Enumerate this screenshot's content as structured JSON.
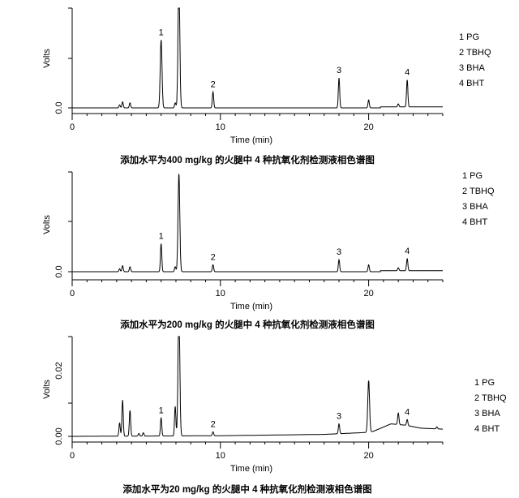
{
  "chart_data": [
    {
      "type": "line",
      "title": "添加水平为400 mg/kg 的火腿中 4 种抗氧化剂检测液相色谱图",
      "xlabel": "Time (min)",
      "ylabel": "Volts",
      "xlim": [
        0,
        25
      ],
      "ylim": [
        0,
        1
      ],
      "x_ticks": [
        "0",
        "10",
        "20"
      ],
      "y_ticks": [
        "0.0"
      ],
      "legend": [
        "1 PG",
        "2 TBHQ",
        "3 BHA",
        "4 BHT"
      ],
      "legend_placement": "right",
      "baseline": [
        [
          0,
          0
        ],
        [
          20.8,
          0
        ],
        [
          20.8,
          0.01
        ],
        [
          25,
          0.01
        ]
      ],
      "peaks": [
        {
          "t": 3.2,
          "h": 0.03
        },
        {
          "t": 3.4,
          "h": 0.06
        },
        {
          "t": 3.9,
          "h": 0.05
        },
        {
          "t": 6.0,
          "h": 0.68,
          "label": "1"
        },
        {
          "t": 6.95,
          "h": 0.05
        },
        {
          "t": 7.2,
          "h": 1.3
        },
        {
          "t": 9.5,
          "h": 0.16,
          "label": "2"
        },
        {
          "t": 18.0,
          "h": 0.3,
          "label": "3"
        },
        {
          "t": 20.0,
          "h": 0.08
        },
        {
          "t": 22.0,
          "h": 0.03
        },
        {
          "t": 22.6,
          "h": 0.27,
          "label": "4"
        }
      ]
    },
    {
      "type": "line",
      "title": "添加水平为200 mg/kg 的火腿中 4 种抗氧化剂检测液相色谱图",
      "xlabel": "Time (min)",
      "ylabel": "Volts",
      "xlim": [
        0,
        25
      ],
      "ylim": [
        0,
        1
      ],
      "x_ticks": [
        "0",
        "10",
        "20"
      ],
      "y_ticks": [
        "0.0"
      ],
      "legend": [
        "1 PG",
        "2 TBHQ",
        "3 BHA",
        "4 BHT"
      ],
      "legend_placement": "right",
      "baseline": [
        [
          0,
          0
        ],
        [
          20.8,
          0
        ],
        [
          20.8,
          0.01
        ],
        [
          25,
          0.01
        ]
      ],
      "peaks": [
        {
          "t": 3.2,
          "h": 0.03
        },
        {
          "t": 3.4,
          "h": 0.06
        },
        {
          "t": 3.9,
          "h": 0.05
        },
        {
          "t": 6.0,
          "h": 0.28,
          "label": "1"
        },
        {
          "t": 6.95,
          "h": 0.05
        },
        {
          "t": 7.2,
          "h": 0.98
        },
        {
          "t": 9.5,
          "h": 0.07,
          "label": "2"
        },
        {
          "t": 18.0,
          "h": 0.12,
          "label": "3"
        },
        {
          "t": 20.0,
          "h": 0.07
        },
        {
          "t": 22.0,
          "h": 0.03
        },
        {
          "t": 22.6,
          "h": 0.12,
          "label": "4"
        }
      ]
    },
    {
      "type": "line",
      "title": "添加水平为20 mg/kg 的火腿中 4 种抗氧化剂检测液相色谱图",
      "xlabel": "Time (min)",
      "ylabel": "Volts",
      "xlim": [
        0,
        25
      ],
      "ylim": [
        0,
        0.0304
      ],
      "x_ticks": [
        "0",
        "10",
        "20"
      ],
      "y_ticks": [
        "0.00",
        "0.02"
      ],
      "legend": [
        "1 PG",
        "2 TBHQ",
        "3 BHA",
        "4 BHT"
      ],
      "legend_placement": "right",
      "baseline": [
        [
          0,
          0
        ],
        [
          10,
          0.0002
        ],
        [
          17,
          0.0006
        ],
        [
          19.9,
          0.0012
        ],
        [
          20.3,
          0.0015
        ],
        [
          21.5,
          0.0038
        ],
        [
          22.5,
          0.0034
        ],
        [
          23.5,
          0.0025
        ],
        [
          25,
          0.0022
        ]
      ],
      "peaks": [
        {
          "t": 3.2,
          "h": 0.004
        },
        {
          "t": 3.4,
          "h": 0.011
        },
        {
          "t": 3.9,
          "h": 0.0078
        },
        {
          "t": 4.5,
          "h": 0.0008
        },
        {
          "t": 4.8,
          "h": 0.001
        },
        {
          "t": 6.0,
          "h": 0.0055,
          "label": "1"
        },
        {
          "t": 6.95,
          "h": 0.009
        },
        {
          "t": 7.2,
          "h": 0.04
        },
        {
          "t": 9.5,
          "h": 0.0012,
          "label": "2"
        },
        {
          "t": 18.0,
          "h": 0.003,
          "label": "3"
        },
        {
          "t": 20.0,
          "h": 0.0157
        },
        {
          "t": 22.0,
          "h": 0.0035
        },
        {
          "t": 22.6,
          "h": 0.0018,
          "label": "4"
        },
        {
          "t": 24.6,
          "h": 0.0006
        }
      ]
    }
  ]
}
